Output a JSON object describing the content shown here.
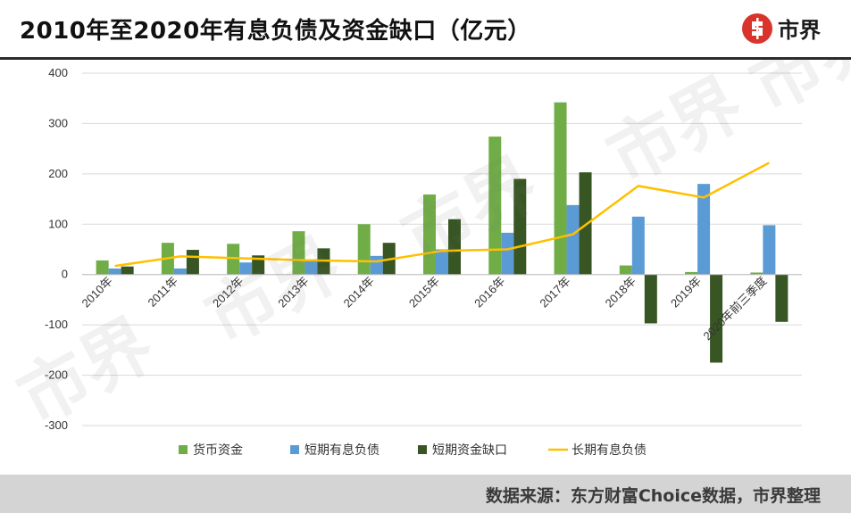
{
  "header": {
    "title": "2010年至2020年有息负债及资金缺口（亿元）",
    "logo_text": "市界"
  },
  "watermark_text": "市界",
  "footer": {
    "source": "数据来源：东方财富Choice数据，市界整理"
  },
  "colors": {
    "series_1": "#70ad47",
    "series_2": "#5b9bd5",
    "series_3": "#375623",
    "series_4": "#ffc000",
    "logo_red": "#d9342b",
    "grid": "#d9d9d9"
  },
  "chart_data": {
    "type": "bar",
    "categories": [
      "2010年",
      "2011年",
      "2012年",
      "2013年",
      "2014年",
      "2015年",
      "2016年",
      "2017年",
      "2018年",
      "2019年",
      "2020年前三季度"
    ],
    "series": [
      {
        "name": "货币资金",
        "type": "bar",
        "values": [
          28,
          63,
          61,
          86,
          100,
          159,
          274,
          342,
          18,
          5,
          4
        ]
      },
      {
        "name": "短期有息负债",
        "type": "bar",
        "values": [
          12,
          12,
          24,
          27,
          37,
          50,
          83,
          138,
          115,
          180,
          98
        ]
      },
      {
        "name": "短期资金缺口",
        "type": "bar",
        "values": [
          16,
          49,
          38,
          52,
          63,
          110,
          190,
          203,
          -97,
          -175,
          -94
        ]
      },
      {
        "name": "长期有息负债",
        "type": "line",
        "values": [
          17,
          36,
          32,
          28,
          26,
          47,
          50,
          80,
          176,
          153,
          222
        ]
      }
    ],
    "ylim": [
      -300,
      400
    ],
    "yticks": [
      400,
      300,
      200,
      100,
      0,
      -100,
      -200,
      -300
    ],
    "grid": true,
    "legend_position": "bottom"
  }
}
